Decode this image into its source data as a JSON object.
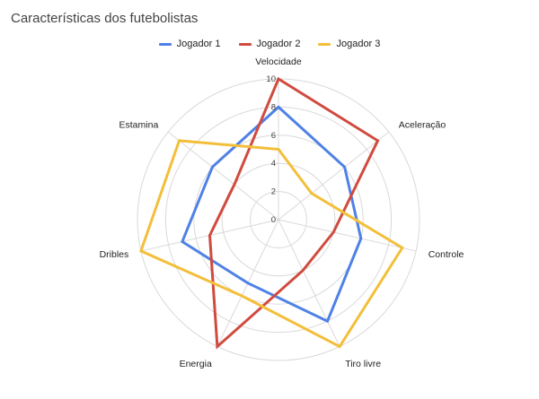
{
  "chart_data": {
    "type": "radar",
    "title": "Características dos futebolistas",
    "axes": [
      "Velocidade",
      "Aceleração",
      "Controle",
      "Tiro livre",
      "Energia",
      "Dribles",
      "Estamina"
    ],
    "range": [
      0,
      10
    ],
    "ticks": [
      "0",
      "2",
      "4",
      "6",
      "8",
      "10"
    ],
    "grid": true,
    "legend_position": "top",
    "series": [
      {
        "name": "Jogador 1",
        "color": "#4f81e6",
        "values": [
          8,
          6,
          6,
          8,
          5,
          7,
          6
        ]
      },
      {
        "name": "Jogador 2",
        "color": "#d04b3f",
        "values": [
          10,
          9,
          4,
          4,
          10,
          5,
          4
        ]
      },
      {
        "name": "Jogador 3",
        "color": "#f3bf3a",
        "values": [
          5,
          3,
          9,
          10,
          6,
          10,
          9
        ]
      }
    ]
  }
}
